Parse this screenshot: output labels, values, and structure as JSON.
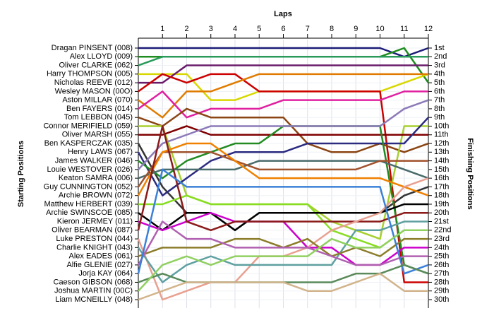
{
  "chart_data": {
    "type": "lap",
    "title": "Laps",
    "y_label": "Starting Positions",
    "y2_label": "Finishing Positions",
    "x": [
      0,
      1,
      2,
      3,
      4,
      5,
      6,
      7,
      8,
      9,
      10,
      11,
      12
    ],
    "xlim": [
      0,
      12
    ],
    "xticks": [
      1,
      2,
      3,
      4,
      5,
      6,
      7,
      8,
      9,
      10,
      11,
      12
    ],
    "ylim": [
      1,
      30
    ],
    "y2ticks": [
      {
        "value": 1,
        "label": "1st"
      },
      {
        "value": 2,
        "label": "2nd"
      },
      {
        "value": 3,
        "label": "3rd"
      },
      {
        "value": 4,
        "label": "4th"
      },
      {
        "value": 5,
        "label": "5th"
      },
      {
        "value": 6,
        "label": "6th"
      },
      {
        "value": 7,
        "label": "7th"
      },
      {
        "value": 8,
        "label": "8th"
      },
      {
        "value": 9,
        "label": "9th"
      },
      {
        "value": 10,
        "label": "10th"
      },
      {
        "value": 11,
        "label": "11th"
      },
      {
        "value": 12,
        "label": "12th"
      },
      {
        "value": 13,
        "label": "13th"
      },
      {
        "value": 14,
        "label": "14th"
      },
      {
        "value": 15,
        "label": "15th"
      },
      {
        "value": 16,
        "label": "16th"
      },
      {
        "value": 17,
        "label": "17th"
      },
      {
        "value": 18,
        "label": "18th"
      },
      {
        "value": 19,
        "label": "19th"
      },
      {
        "value": 20,
        "label": "20th"
      },
      {
        "value": 21,
        "label": "21st"
      },
      {
        "value": 22,
        "label": "22nd"
      },
      {
        "value": 23,
        "label": "23rd"
      },
      {
        "value": 24,
        "label": "24th"
      },
      {
        "value": 25,
        "label": "25th"
      },
      {
        "value": 26,
        "label": "26th"
      },
      {
        "value": 27,
        "label": "27th"
      },
      {
        "value": 28,
        "label": "28th"
      },
      {
        "value": 29,
        "label": "29th"
      },
      {
        "value": 30,
        "label": "30th"
      }
    ],
    "grid": true,
    "series": [
      {
        "name": "Dragan PINSENT (008)",
        "color": "#1c1c78",
        "values": [
          1,
          1,
          1,
          1,
          1,
          1,
          1,
          1,
          1,
          1,
          1,
          2,
          1
        ]
      },
      {
        "name": "Alex LLOYD (009)",
        "color": "#1e8c1e",
        "values": [
          2,
          2,
          2,
          2,
          2,
          2,
          2,
          2,
          2,
          2,
          2,
          1,
          5
        ]
      },
      {
        "name": "Oliver CLARKE (062)",
        "color": "#2a9a5a",
        "values": [
          3,
          2,
          2,
          2,
          2,
          2,
          2,
          2,
          2,
          2,
          2,
          2,
          2
        ]
      },
      {
        "name": "Harry THOMPSON (005)",
        "color": "#d8d800",
        "values": [
          4,
          4,
          4,
          7,
          7,
          6,
          6,
          6,
          6,
          6,
          6,
          5,
          4
        ]
      },
      {
        "name": "Nicholas REEVE (012)",
        "color": "#6a1b6a",
        "values": [
          5,
          5,
          3,
          3,
          3,
          3,
          3,
          3,
          3,
          3,
          3,
          3,
          3
        ]
      },
      {
        "name": "Wesley MASON (00O)",
        "color": "#cc0000",
        "values": [
          6,
          4,
          5,
          4,
          4,
          6,
          6,
          6,
          6,
          6,
          6,
          28,
          28
        ]
      },
      {
        "name": "Aston MILLAR (070)",
        "color": "#e07b00",
        "values": [
          7,
          9,
          6,
          6,
          5,
          4,
          4,
          4,
          4,
          4,
          4,
          4,
          4
        ]
      },
      {
        "name": "Ben FAYERS (014)",
        "color": "#e020a0",
        "values": [
          8,
          6,
          9,
          8,
          8,
          8,
          7,
          7,
          7,
          7,
          7,
          6,
          6
        ]
      },
      {
        "name": "Tom LEBBON (045)",
        "color": "#8b4513",
        "values": [
          9,
          10,
          8,
          9,
          9,
          9,
          9,
          12,
          13,
          13,
          12,
          13,
          12
        ]
      },
      {
        "name": "Connor MERIFIELD (059)",
        "color": "#a8d030",
        "values": [
          10,
          10,
          18,
          19,
          19,
          19,
          19,
          19,
          21,
          22,
          23,
          10,
          10
        ]
      },
      {
        "name": "Oliver MARSH (055)",
        "color": "#800000",
        "values": [
          11,
          11,
          10,
          11,
          11,
          11,
          11,
          11,
          11,
          11,
          11,
          11,
          11
        ]
      },
      {
        "name": "Ben KASPERCZAK (035)",
        "color": "#333333",
        "values": [
          12,
          17,
          20,
          20,
          22,
          20,
          20,
          20,
          20,
          20,
          20,
          18,
          17
        ]
      },
      {
        "name": "Henry LAWS (067)",
        "color": "#2b2b80",
        "values": [
          13,
          18,
          16,
          14,
          13,
          13,
          13,
          12,
          12,
          12,
          12,
          12,
          9
        ]
      },
      {
        "name": "James WALKER (046)",
        "color": "#228b22",
        "values": [
          14,
          16,
          14,
          13,
          12,
          12,
          10,
          10,
          10,
          10,
          10,
          26,
          27
        ]
      },
      {
        "name": "Louie WESTOVER (026)",
        "color": "#8c7ab8",
        "values": [
          15,
          12,
          11,
          10,
          10,
          10,
          10,
          10,
          10,
          10,
          10,
          8,
          7
        ]
      },
      {
        "name": "Keaton SAMRA (006)",
        "color": "#4a6b6b",
        "values": [
          16,
          15,
          15,
          15,
          15,
          14,
          14,
          14,
          14,
          14,
          14,
          15,
          16
        ]
      },
      {
        "name": "Guy CUNNINGTON (052)",
        "color": "#a0522d",
        "values": [
          17,
          13,
          13,
          13,
          14,
          15,
          15,
          15,
          15,
          15,
          14,
          14,
          14
        ]
      },
      {
        "name": "Archie BROWN (072)",
        "color": "#f08000",
        "values": [
          18,
          13,
          12,
          12,
          14,
          16,
          16,
          16,
          16,
          16,
          16,
          17,
          18
        ]
      },
      {
        "name": "Matthew HERBERT (039)",
        "color": "#88dd22",
        "values": [
          19,
          19,
          18,
          19,
          19,
          19,
          19,
          19,
          22,
          23,
          24,
          22,
          22
        ]
      },
      {
        "name": "Archie SWINSCOE (085)",
        "color": "#000000",
        "values": [
          20,
          22,
          20,
          20,
          22,
          20,
          20,
          20,
          20,
          20,
          20,
          19,
          19
        ]
      },
      {
        "name": "Kieron JERMEY (011)",
        "color": "#cc00cc",
        "values": [
          21,
          22,
          21,
          20,
          21,
          21,
          21,
          24,
          24,
          26,
          26,
          24,
          24
        ]
      },
      {
        "name": "Oliver BEARMAN (087)",
        "color": "#8b1a1a",
        "values": [
          22,
          10,
          21,
          22,
          21,
          21,
          21,
          21,
          21,
          21,
          21,
          20,
          20
        ]
      },
      {
        "name": "Luke PRESTON (044)",
        "color": "#e8a090",
        "values": [
          23,
          30,
          29,
          28,
          28,
          25,
          25,
          24,
          22,
          21,
          20,
          17,
          16
        ]
      },
      {
        "name": "Charlie KNIGHT (043)",
        "color": "#5fa0a0",
        "values": [
          24,
          28,
          26,
          25,
          26,
          26,
          26,
          26,
          26,
          22,
          22,
          21,
          21
        ]
      },
      {
        "name": "Alex EADES (061)",
        "color": "#8b7d2a",
        "values": [
          25,
          24,
          24,
          24,
          23,
          23,
          24,
          23,
          25,
          24,
          25,
          23,
          23
        ]
      },
      {
        "name": "Alfie GLENIE (027)",
        "color": "#b060b0",
        "values": [
          26,
          21,
          23,
          23,
          24,
          24,
          24,
          24,
          25,
          26,
          26,
          25,
          25
        ]
      },
      {
        "name": "Jorja KAY (064)",
        "color": "#3a80d8",
        "values": [
          27,
          15,
          17,
          17,
          17,
          17,
          17,
          17,
          17,
          17,
          17,
          27,
          26
        ]
      },
      {
        "name": "Caeson GIBSON (068)",
        "color": "#5a8a5a",
        "values": [
          28,
          27,
          28,
          28,
          28,
          28,
          28,
          28,
          28,
          27,
          27,
          26,
          27
        ]
      },
      {
        "name": "Joshua MARTIN (00C)",
        "color": "#90d060",
        "values": [
          29,
          26,
          25,
          26,
          25,
          25,
          25,
          25,
          23,
          24,
          24,
          22,
          22
        ]
      },
      {
        "name": "Liam MCNEILLY (048)",
        "color": "#d2b48c",
        "values": [
          30,
          29,
          28,
          28,
          28,
          28,
          28,
          29,
          29,
          28,
          27,
          29,
          29
        ]
      }
    ]
  }
}
